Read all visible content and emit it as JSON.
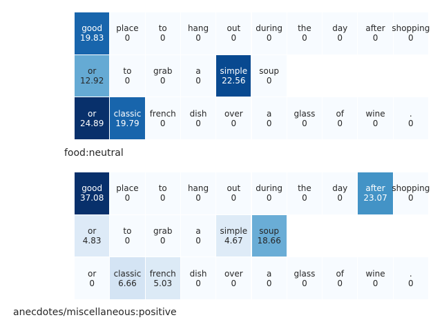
{
  "chart_data": [
    {
      "type": "heatmap",
      "label": "food:neutral",
      "colormap": "Blues",
      "vmax": 24.89,
      "rows": [
        {
          "tokens": [
            "good",
            "place",
            "to",
            "hang",
            "out",
            "during",
            "the",
            "day",
            "after",
            "shopping"
          ],
          "values": [
            19.83,
            0,
            0,
            0,
            0,
            0,
            0,
            0,
            0,
            0
          ]
        },
        {
          "tokens": [
            "or",
            "to",
            "grab",
            "a",
            "simple",
            "soup"
          ],
          "values": [
            12.92,
            0,
            0,
            0,
            22.56,
            0
          ]
        },
        {
          "tokens": [
            "or",
            "classic",
            "french",
            "dish",
            "over",
            "a",
            "glass",
            "of",
            "wine",
            "."
          ],
          "values": [
            24.89,
            19.79,
            0,
            0,
            0,
            0,
            0,
            0,
            0,
            0
          ]
        }
      ]
    },
    {
      "type": "heatmap",
      "label": "anecdotes/miscellaneous:positive",
      "colormap": "Blues",
      "vmax": 37.08,
      "rows": [
        {
          "tokens": [
            "good",
            "place",
            "to",
            "hang",
            "out",
            "during",
            "the",
            "day",
            "after",
            "shopping"
          ],
          "values": [
            37.08,
            0,
            0,
            0,
            0,
            0,
            0,
            0,
            23.07,
            0
          ]
        },
        {
          "tokens": [
            "or",
            "to",
            "grab",
            "a",
            "simple",
            "soup"
          ],
          "values": [
            4.83,
            0,
            0,
            0,
            4.67,
            18.66
          ]
        },
        {
          "tokens": [
            "or",
            "classic",
            "french",
            "dish",
            "over",
            "a",
            "glass",
            "of",
            "wine",
            "."
          ],
          "values": [
            0,
            6.66,
            5.03,
            0,
            0,
            0,
            0,
            0,
            0,
            0
          ]
        }
      ]
    }
  ]
}
